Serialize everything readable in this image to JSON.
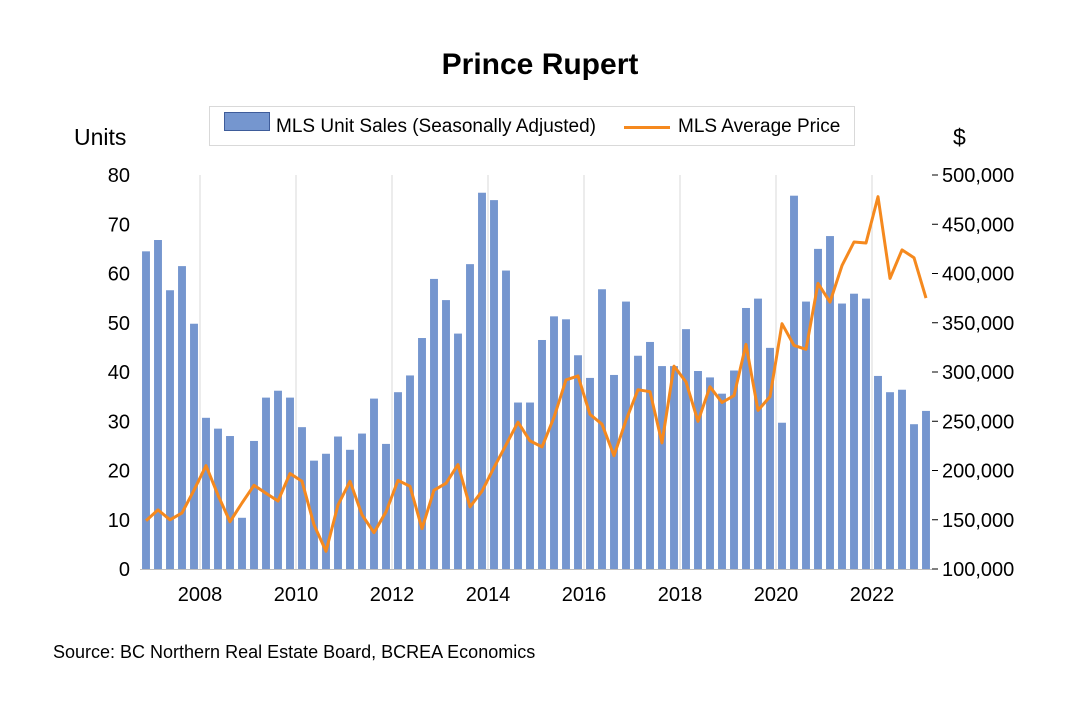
{
  "chart_data": {
    "type": "bar+line",
    "title": "Prince Rupert",
    "y_left_label": "Units",
    "y_right_label": "$",
    "y_left_lim": [
      0,
      80
    ],
    "y_right_lim": [
      100000,
      500000
    ],
    "y_left_ticks": [
      "0",
      "10",
      "20",
      "30",
      "40",
      "50",
      "60",
      "70",
      "80"
    ],
    "y_right_ticks": [
      "100,000",
      "150,000",
      "200,000",
      "250,000",
      "300,000",
      "350,000",
      "400,000",
      "450,000",
      "500,000"
    ],
    "x_tick_labels": [
      "2008",
      "2010",
      "2012",
      "2014",
      "2016",
      "2018",
      "2020",
      "2022"
    ],
    "x_start_quarter": "2006-Q4",
    "grid": "vertical",
    "legend_position": "top",
    "source": "Source:  BC Northern Real Estate Board, BCREA Economics",
    "colors": {
      "bars": "#7596CF",
      "bar_edge": "#3E5C9A",
      "line": "#F5891E",
      "grid": "#d9d9d9"
    },
    "series": [
      {
        "name": "MLS Unit Sales (Seasonally Adjusted)",
        "type": "bar",
        "axis": "left",
        "values": [
          64.5,
          66.8,
          56.6,
          61.5,
          49.8,
          30.7,
          28.5,
          27,
          10.4,
          26,
          34.8,
          36.2,
          34.8,
          28.8,
          22,
          23.4,
          26.9,
          24.2,
          27.5,
          34.6,
          25.4,
          35.9,
          39.3,
          46.9,
          58.9,
          54.6,
          47.8,
          61.9,
          76.4,
          74.9,
          60.6,
          33.8,
          33.8,
          46.5,
          51.3,
          50.7,
          43.4,
          38.8,
          56.8,
          39.4,
          54.3,
          43.3,
          46.1,
          41.2,
          41.2,
          48.7,
          40.2,
          38.9,
          35.6,
          40.3,
          53,
          54.9,
          44.9,
          29.7,
          75.8,
          54.3,
          65,
          67.6,
          53.9,
          55.9,
          54.9,
          39.2,
          35.9,
          36.4,
          29.4,
          32.1
        ]
      },
      {
        "name": "MLS Average Price",
        "type": "line",
        "axis": "right",
        "values": [
          149000,
          160000,
          150000,
          157000,
          180000,
          205000,
          175000,
          148000,
          167000,
          185000,
          177000,
          169000,
          197000,
          189000,
          145000,
          118000,
          165000,
          189000,
          155000,
          137000,
          158000,
          190000,
          184000,
          141000,
          180000,
          187000,
          206000,
          163000,
          179000,
          203000,
          226000,
          249000,
          230000,
          224000,
          254000,
          292000,
          296000,
          257000,
          247000,
          215000,
          251000,
          282000,
          280000,
          228000,
          306000,
          290000,
          250000,
          285000,
          269000,
          276000,
          328000,
          261000,
          275000,
          349000,
          327000,
          323000,
          390000,
          371000,
          408000,
          432000,
          431000,
          478000,
          395000,
          424000,
          416000,
          375000
        ]
      }
    ]
  }
}
